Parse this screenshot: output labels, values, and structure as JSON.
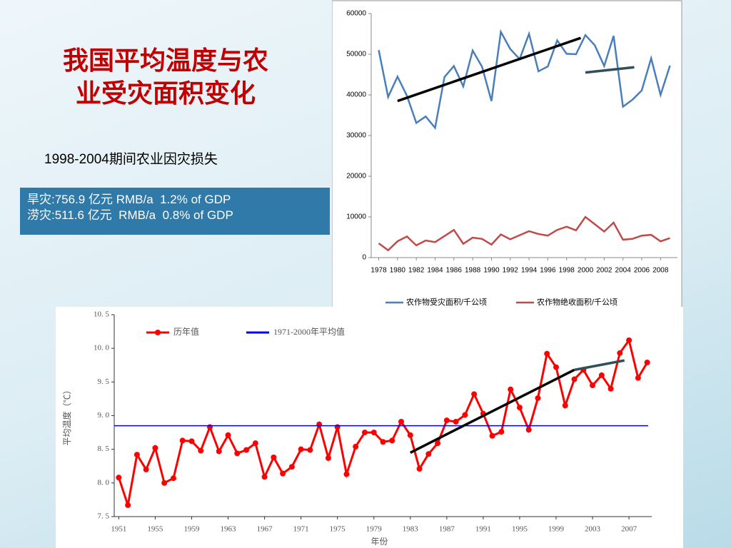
{
  "slide": {
    "title": [
      "我国平均温度与农",
      "业受灾面积变化"
    ],
    "subtitle": "1998-2004期间农业因灾损失",
    "box": [
      "旱灾:756.9 亿元 RMB/a  1.2% of GDP",
      "涝灾:511.6 亿元  RMB/a  0.8% of GDP"
    ]
  },
  "chart_data": [
    {
      "type": "line",
      "x": [
        1978,
        1979,
        1980,
        1981,
        1982,
        1983,
        1984,
        1985,
        1986,
        1987,
        1988,
        1989,
        1990,
        1991,
        1992,
        1993,
        1994,
        1995,
        1996,
        1997,
        1998,
        1999,
        2000,
        2001,
        2002,
        2003,
        2004,
        2005,
        2006,
        2007,
        2008,
        2009
      ],
      "xlim": [
        1977.2,
        2009.8
      ],
      "xticks": [
        1978,
        1980,
        1982,
        1984,
        1986,
        1988,
        1990,
        1992,
        1994,
        1996,
        1998,
        2000,
        2002,
        2004,
        2006,
        2008
      ],
      "ylim": [
        0,
        60000
      ],
      "yticks": [
        0,
        10000,
        20000,
        30000,
        40000,
        50000,
        60000
      ],
      "legend": "bottom",
      "series": [
        {
          "name": "农作物受灾面积/千公顷",
          "color": "#4a7ebb",
          "values": [
            51000,
            39500,
            44500,
            39800,
            33100,
            34700,
            31900,
            44400,
            47100,
            42100,
            50900,
            46900,
            38500,
            55500,
            51300,
            48800,
            55000,
            45800,
            47000,
            53400,
            50100,
            50000,
            54700,
            52200,
            47100,
            54500,
            37100,
            38800,
            41100,
            49000,
            40000,
            47200
          ]
        },
        {
          "name": "农作物绝收面积/千公顷",
          "color": "#be4b48",
          "values": [
            3500,
            1800,
            4000,
            5200,
            3000,
            4200,
            3800,
            5300,
            6800,
            3400,
            4900,
            4600,
            3200,
            5700,
            4500,
            5500,
            6500,
            5800,
            5400,
            6800,
            7600,
            6700,
            10000,
            8200,
            6400,
            8600,
            4400,
            4600,
            5400,
            5600,
            4000,
            4800
          ]
        }
      ],
      "trend_lines": [
        {
          "color": "#000000",
          "x": [
            1980,
            1999.5
          ],
          "y": [
            38500,
            54000
          ]
        },
        {
          "color": "#2f4f5a",
          "x": [
            2000,
            2005.2
          ],
          "y": [
            45500,
            46800
          ]
        }
      ]
    },
    {
      "type": "line",
      "x": [
        1951,
        1952,
        1953,
        1954,
        1955,
        1956,
        1957,
        1958,
        1959,
        1960,
        1961,
        1962,
        1963,
        1964,
        1965,
        1966,
        1967,
        1968,
        1969,
        1970,
        1971,
        1972,
        1973,
        1974,
        1975,
        1976,
        1977,
        1978,
        1979,
        1980,
        1981,
        1982,
        1983,
        1984,
        1985,
        1986,
        1987,
        1988,
        1989,
        1990,
        1991,
        1992,
        1993,
        1994,
        1995,
        1996,
        1997,
        1998,
        1999,
        2000,
        2001,
        2002,
        2003,
        2004,
        2005,
        2006,
        2007,
        2008,
        2009
      ],
      "xlim": [
        1950.5,
        2009.5
      ],
      "xticks": [
        1951,
        1955,
        1959,
        1963,
        1967,
        1971,
        1975,
        1979,
        1983,
        1987,
        1991,
        1995,
        1999,
        2003,
        2007
      ],
      "ylim": [
        7.5,
        10.5
      ],
      "yticks": [
        {
          "value": 7.5,
          "label": "7. 5"
        },
        {
          "value": 8.0,
          "label": "8. 0"
        },
        {
          "value": 8.5,
          "label": "8. 5"
        },
        {
          "value": 9.0,
          "label": "9. 0"
        },
        {
          "value": 9.5,
          "label": "9. 5"
        },
        {
          "value": 10.0,
          "label": "10. 0"
        },
        {
          "value": 10.5,
          "label": "10. 5"
        }
      ],
      "y_label": "平均温度（℃）",
      "x_label": "年份",
      "legend": "top-left",
      "series": [
        {
          "name": "历年值",
          "color": "#ff0000",
          "marker": "circle",
          "values": [
            8.08,
            7.67,
            8.42,
            8.2,
            8.52,
            8.0,
            8.07,
            8.63,
            8.62,
            8.48,
            8.83,
            8.47,
            8.71,
            8.44,
            8.49,
            8.59,
            8.09,
            8.38,
            8.14,
            8.24,
            8.5,
            8.49,
            8.87,
            8.37,
            8.83,
            8.13,
            8.54,
            8.75,
            8.75,
            8.61,
            8.63,
            8.91,
            8.71,
            8.21,
            8.43,
            8.59,
            8.93,
            8.91,
            9.01,
            9.32,
            9.03,
            8.7,
            8.76,
            9.39,
            9.12,
            8.79,
            9.26,
            9.92,
            9.72,
            9.15,
            9.54,
            9.68,
            9.45,
            9.6,
            9.4,
            9.93,
            10.12,
            9.56,
            9.79
          ]
        },
        {
          "name": "1971-2000年平均值",
          "color": "#0000ff",
          "constant": 8.85
        }
      ],
      "trend_lines": [
        {
          "color": "#000000",
          "x": [
            1983,
            2001
          ],
          "y": [
            8.45,
            9.68
          ]
        },
        {
          "color": "#2f4f5a",
          "x": [
            2001,
            2006.5
          ],
          "y": [
            9.68,
            9.82
          ]
        }
      ]
    }
  ]
}
